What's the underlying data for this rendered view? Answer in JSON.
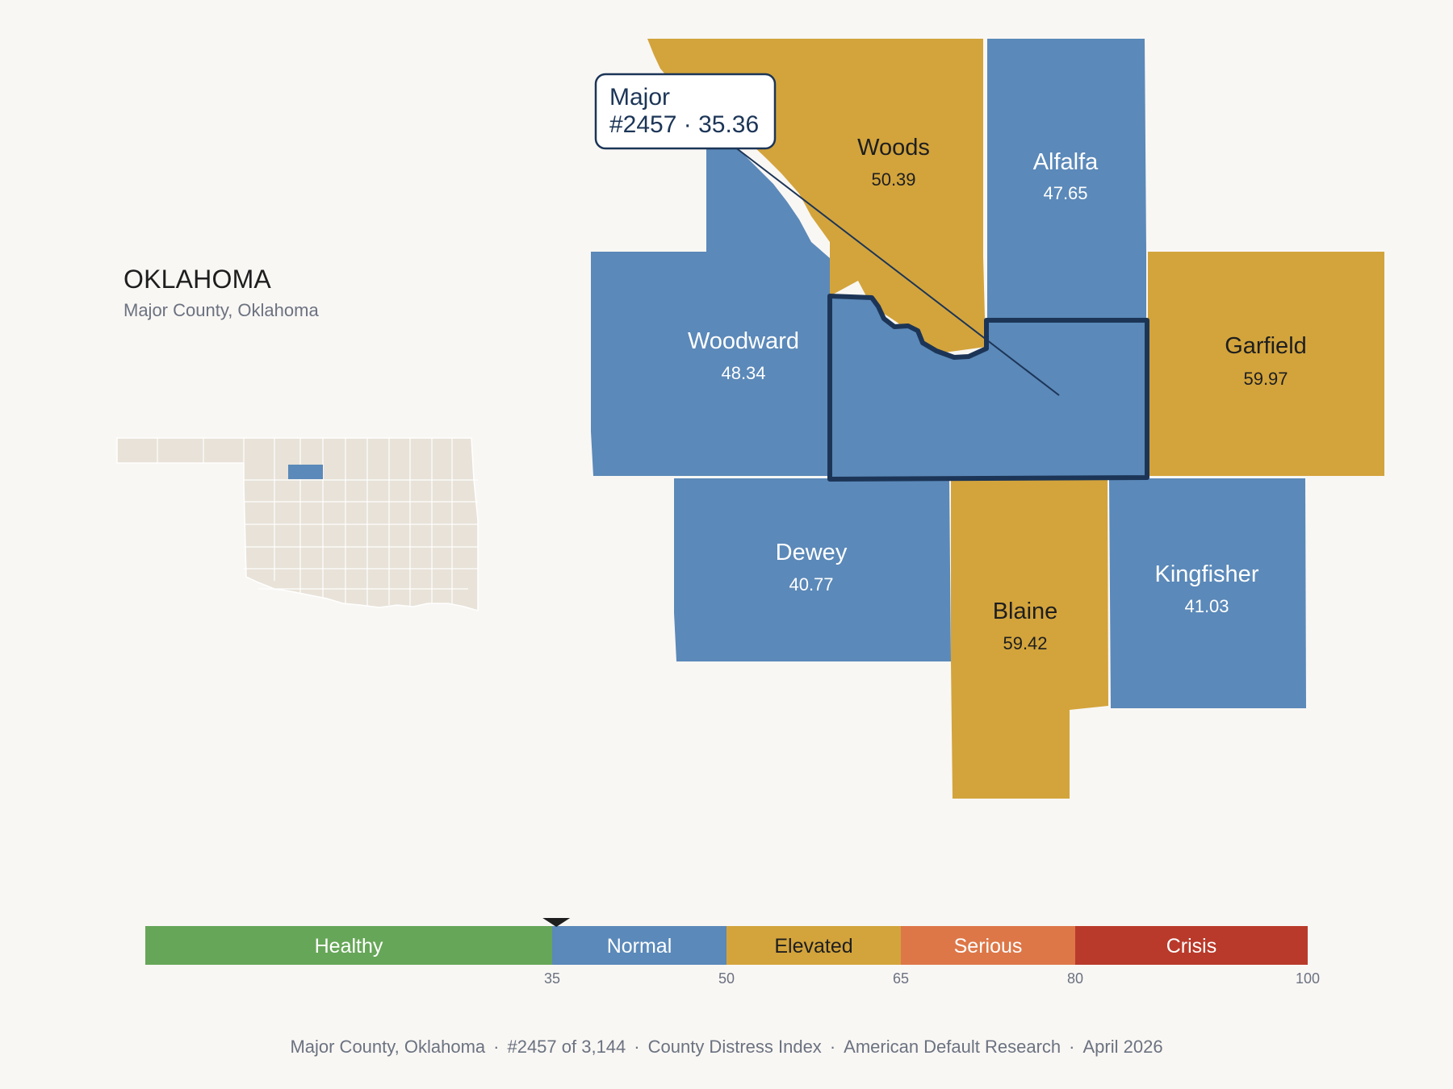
{
  "header": {
    "state": "OKLAHOMA",
    "subtitle": "Major County, Oklahoma"
  },
  "tooltip": {
    "county": "Major",
    "detail": "#2457 · 35.36"
  },
  "colors": {
    "normal": "#5b89b9",
    "elevated": "#d3a43c",
    "highlight_border": "#1c3557",
    "inset_fill": "#e8e2d8"
  },
  "counties": [
    {
      "name": "Woods",
      "value": "50.39",
      "band": "elevated"
    },
    {
      "name": "Alfalfa",
      "value": "47.65",
      "band": "normal"
    },
    {
      "name": "Woodward",
      "value": "48.34",
      "band": "normal"
    },
    {
      "name": "Garfield",
      "value": "59.97",
      "band": "elevated"
    },
    {
      "name": "Dewey",
      "value": "40.77",
      "band": "normal"
    },
    {
      "name": "Blaine",
      "value": "59.42",
      "band": "elevated"
    },
    {
      "name": "Kingfisher",
      "value": "41.03",
      "band": "normal"
    },
    {
      "name": "Major",
      "value": "35.36",
      "band": "normal"
    }
  ],
  "scale": {
    "bands": [
      {
        "label": "Healthy",
        "from": 0,
        "to": 35,
        "color": "#66a658"
      },
      {
        "label": "Normal",
        "from": 35,
        "to": 50,
        "color": "#5b89b9"
      },
      {
        "label": "Elevated",
        "from": 50,
        "to": 65,
        "color": "#d3a43c"
      },
      {
        "label": "Serious",
        "from": 65,
        "to": 80,
        "color": "#dd7748"
      },
      {
        "label": "Crisis",
        "from": 80,
        "to": 100,
        "color": "#b93a2b"
      }
    ],
    "ticks": [
      "35",
      "50",
      "65",
      "80",
      "100"
    ],
    "marker_value": 35.36
  },
  "footer": {
    "location": "Major County, Oklahoma",
    "rank": "#2457 of 3,144",
    "index": "County Distress Index",
    "source": "American Default Research",
    "date": "April 2026",
    "separator": "·"
  }
}
